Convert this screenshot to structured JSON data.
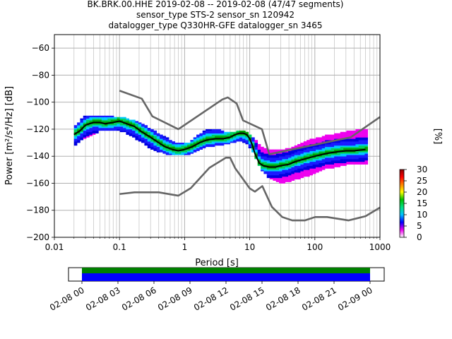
{
  "title": {
    "line1": "BK.BRK.00.HHE   2019-02-08 -- 2019-02-08  (47/47 segments)",
    "line2": "sensor_type STS-2 sensor_sn 120942",
    "line3": "datalogger_type Q330HR-GFE datalogger_sn 3465"
  },
  "chart_data": {
    "type": "heatmap",
    "xscale": "log",
    "xlabel": "Period [s]",
    "ylabel": "Power [m²/s⁴/Hz] [dB]",
    "xlim": [
      0.01,
      1000
    ],
    "ylim": [
      -200,
      -50
    ],
    "xticks": [
      {
        "value": 0.01,
        "label": "0.01"
      },
      {
        "value": 0.1,
        "label": "0.1"
      },
      {
        "value": 1,
        "label": "1"
      },
      {
        "value": 10,
        "label": "10"
      },
      {
        "value": 100,
        "label": "100"
      },
      {
        "value": 1000,
        "label": "1000"
      }
    ],
    "yticks": [
      {
        "value": -60,
        "label": "−60"
      },
      {
        "value": -80,
        "label": "−80"
      },
      {
        "value": -100,
        "label": "−100"
      },
      {
        "value": -120,
        "label": "−120"
      },
      {
        "value": -140,
        "label": "−140"
      },
      {
        "value": -160,
        "label": "−160"
      },
      {
        "value": -180,
        "label": "−180"
      },
      {
        "value": -200,
        "label": "−200"
      }
    ],
    "grid": true,
    "colorbar": {
      "label": "[%]",
      "min": 0,
      "max": 30,
      "ticks": [
        {
          "value": 0,
          "label": "0"
        },
        {
          "value": 5,
          "label": "5"
        },
        {
          "value": 10,
          "label": "10"
        },
        {
          "value": 15,
          "label": "15"
        },
        {
          "value": 20,
          "label": "20"
        },
        {
          "value": 25,
          "label": "25"
        },
        {
          "value": 30,
          "label": "30"
        }
      ],
      "colors": [
        "#ffffff",
        "#ee00ee",
        "#0000ff",
        "#00c0ff",
        "#00e080",
        "#00c000",
        "#ffff00",
        "#ff8000",
        "#ff0000",
        "#8b0000"
      ]
    },
    "noise_model_high": {
      "period": [
        0.1,
        0.22,
        0.32,
        0.8,
        3.8,
        4.6,
        6.3,
        7.9,
        15.4,
        20,
        354.8,
        1000
      ],
      "db": [
        -91.5,
        -97.4,
        -110.5,
        -120,
        -98,
        -96.5,
        -101,
        -113.5,
        -120,
        -138.5,
        -126,
        -111
      ]
    },
    "noise_model_low": {
      "period": [
        0.1,
        0.17,
        0.4,
        0.8,
        1.24,
        2.4,
        4.3,
        5,
        6,
        10,
        12,
        15.6,
        21.9,
        31.6,
        45,
        70,
        101,
        154,
        328,
        600,
        1000
      ],
      "db": [
        -168,
        -166.7,
        -166.7,
        -169.2,
        -163.7,
        -148.6,
        -141.1,
        -141.1,
        -149,
        -163.8,
        -166.2,
        -162.1,
        -177.5,
        -185,
        -187.5,
        -187.5,
        -185,
        -185,
        -187.5,
        -184.4,
        -178
      ]
    },
    "mode_curve": {
      "period": [
        0.02,
        0.025,
        0.03,
        0.04,
        0.05,
        0.06,
        0.08,
        0.1,
        0.13,
        0.17,
        0.22,
        0.3,
        0.4,
        0.5,
        0.65,
        0.8,
        1,
        1.3,
        1.7,
        2.2,
        3,
        4,
        5,
        6,
        7,
        8,
        9,
        10,
        11,
        12,
        14,
        16,
        20,
        25,
        30,
        40,
        50,
        70,
        100,
        150,
        200,
        300,
        400,
        600
      ],
      "db": [
        -124,
        -121,
        -117,
        -115,
        -115,
        -116,
        -115,
        -114,
        -116,
        -118,
        -122,
        -126,
        -130,
        -133,
        -135,
        -136,
        -135,
        -133,
        -130,
        -128,
        -127,
        -127,
        -126,
        -124,
        -123,
        -123,
        -124,
        -127,
        -132,
        -138,
        -145,
        -147,
        -148,
        -148,
        -147,
        -146,
        -144,
        -142,
        -140,
        -138,
        -137,
        -136,
        -136,
        -135
      ]
    },
    "density_envelope": {
      "period": [
        0.02,
        0.03,
        0.05,
        0.08,
        0.12,
        0.2,
        0.3,
        0.5,
        0.8,
        1.2,
        2,
        3,
        5,
        7,
        9,
        12,
        15,
        20,
        30,
        50,
        80,
        150,
        300,
        650
      ],
      "upper_db": [
        -119,
        -110,
        -111,
        -111,
        -112,
        -115,
        -120,
        -126,
        -131,
        -130,
        -121,
        -120,
        -123,
        -121,
        -122,
        -128,
        -133,
        -136,
        -136,
        -133,
        -128,
        -125,
        -122,
        -120
      ],
      "lower_db": [
        -133,
        -127,
        -122,
        -121,
        -123,
        -129,
        -135,
        -139,
        -140,
        -139,
        -134,
        -133,
        -131,
        -129,
        -131,
        -140,
        -151,
        -157,
        -161,
        -158,
        -155,
        -150,
        -147,
        -146
      ]
    },
    "time_axis": {
      "ticks": [
        "02-08 00",
        "02-08 03",
        "02-08 06",
        "02-08 09",
        "02-08 12",
        "02-08 15",
        "02-08 18",
        "02-08 21",
        "02-09 00"
      ],
      "coverage_color": "#008000",
      "data_color": "#0000ff"
    }
  }
}
